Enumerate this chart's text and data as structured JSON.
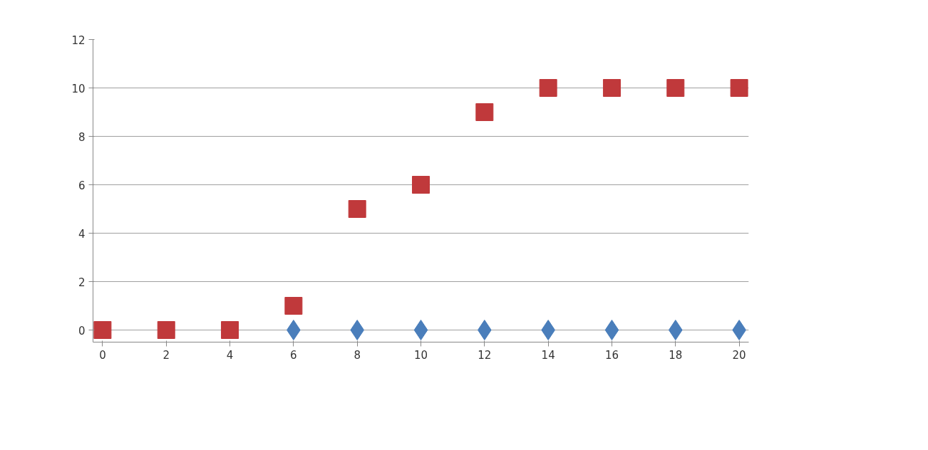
{
  "chart_data": {
    "type": "scatter",
    "x": [
      0,
      2,
      4,
      6,
      8,
      10,
      12,
      14,
      16,
      18,
      20
    ],
    "series": [
      {
        "color": "#4a7ebb",
        "marker": "diamond",
        "values": [
          null,
          null,
          null,
          0,
          0,
          0,
          0,
          0,
          0,
          0,
          0
        ]
      },
      {
        "color": "#c0393b",
        "marker": "square",
        "values": [
          0,
          0,
          0,
          1,
          5,
          6,
          9,
          10,
          10,
          10,
          10
        ]
      }
    ],
    "xlim": [
      -0.3,
      20.3
    ],
    "ylim": [
      -0.5,
      12
    ],
    "xticks": [
      0,
      2,
      4,
      6,
      8,
      10,
      12,
      14,
      16,
      18,
      20
    ],
    "yticks": [
      0,
      2,
      4,
      6,
      8,
      10,
      12
    ],
    "grid": "y"
  }
}
